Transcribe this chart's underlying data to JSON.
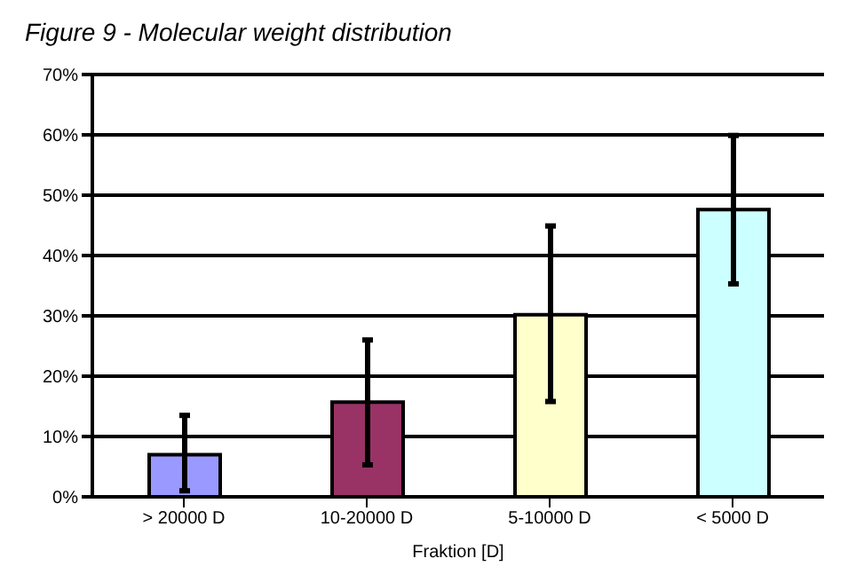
{
  "chart_data": {
    "type": "bar",
    "title": "Figure 9 -  Molecular weight distribution",
    "xlabel": "Fraktion [D]",
    "categories": [
      "> 20000 D",
      "10-20000 D",
      "5-10000 D",
      "< 5000 D"
    ],
    "values": [
      7,
      15.7,
      30.2,
      47.6
    ],
    "colors": [
      "#9999ff",
      "#993366",
      "#ffffcc",
      "#ccffff"
    ],
    "errors": [
      [
        1,
        13.5
      ],
      [
        5.3,
        26
      ],
      [
        15.8,
        44.9
      ],
      [
        35.3,
        59.9
      ]
    ],
    "ylim": [
      0,
      70
    ],
    "yticks": [
      {
        "value": 0,
        "label": "0%"
      },
      {
        "value": 10,
        "label": "10%"
      },
      {
        "value": 20,
        "label": "20%"
      },
      {
        "value": 30,
        "label": "30%"
      },
      {
        "value": 40,
        "label": "40%"
      },
      {
        "value": 50,
        "label": "50%"
      },
      {
        "value": 60,
        "label": "60%"
      },
      {
        "value": 70,
        "label": "70%"
      }
    ],
    "grid": "y",
    "legend": false
  }
}
